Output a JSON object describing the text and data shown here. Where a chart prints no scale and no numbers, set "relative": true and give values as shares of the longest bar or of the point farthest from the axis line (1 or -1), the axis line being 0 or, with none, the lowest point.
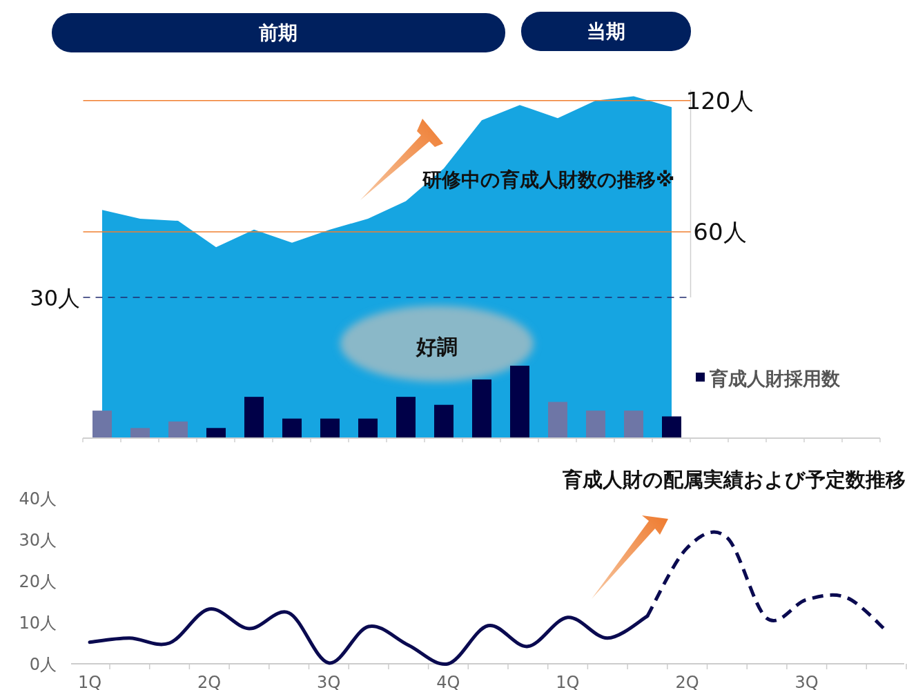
{
  "chart_data": [
    {
      "type": "area",
      "categories": [
        null,
        null,
        null,
        null,
        null,
        null,
        null,
        null,
        null,
        null,
        null,
        null,
        null,
        null,
        null,
        null
      ],
      "ylim": [
        30,
        125
      ],
      "yticks": [
        {
          "value": 60,
          "label": "60人"
        },
        {
          "value": 120,
          "label": "120人"
        }
      ],
      "series": [
        {
          "color": "#16a5e1",
          "values": [
            70,
            66,
            65,
            53,
            61,
            55,
            61,
            66,
            74,
            89,
            111,
            118,
            112,
            120,
            122,
            117
          ]
        }
      ],
      "ref_lines": [
        {
          "axis": "y",
          "value": 120,
          "color": "#f07f2f"
        },
        {
          "axis": "y",
          "value": 60,
          "color": "#f07f2f"
        },
        {
          "axis": "y",
          "value": 30,
          "label": "30人",
          "color": "#1f2a6e",
          "line_style": "dashed"
        }
      ],
      "annotations": [
        "前期",
        "当期",
        "研修中の育成人財数の推移※"
      ]
    },
    {
      "type": "bar",
      "relative": true,
      "categories": [
        null,
        null,
        null,
        null,
        null,
        null,
        null,
        null,
        null,
        null,
        null,
        null,
        null,
        null,
        null,
        null
      ],
      "legend": "right",
      "series": [
        {
          "name": "育成人財採用数",
          "color": "#000048",
          "values": [
            0.38,
            0.14,
            0.23,
            0.14,
            0.57,
            0.27,
            0.27,
            0.27,
            0.57,
            0.46,
            0.81,
            1,
            0.5,
            0.38,
            0.38,
            0.3
          ],
          "colors": [
            "#6e76a6",
            "#6e76a6",
            "#6e76a6",
            "#000048",
            "#000048",
            "#000048",
            "#000048",
            "#000048",
            "#000048",
            "#000048",
            "#000048",
            "#000048",
            "#6e76a6",
            "#6e76a6",
            "#6e76a6",
            "#000048"
          ]
        }
      ],
      "annotations": [
        "好調"
      ]
    },
    {
      "type": "line",
      "title": "育成人財の配属実績および予定数推移",
      "ylim": [
        0,
        40
      ],
      "categories": [
        "1Q",
        null,
        null,
        "2Q",
        null,
        null,
        "3Q",
        null,
        null,
        "4Q",
        null,
        null,
        "1Q",
        null,
        null,
        "2Q",
        null,
        null,
        "3Q",
        null,
        null
      ],
      "yticks": [
        {
          "value": 0,
          "label": "0人"
        },
        {
          "value": 10,
          "label": "10人"
        },
        {
          "value": 20,
          "label": "20人"
        },
        {
          "value": 30,
          "label": "30人"
        },
        {
          "value": 40,
          "label": "40人"
        }
      ],
      "series": [
        {
          "color": "#0a0a50",
          "line_style": "solid",
          "values": [
            5.2,
            6.2,
            5,
            13.2,
            8.5,
            12.3,
            0.2,
            9,
            4.5,
            0,
            9.2,
            4.2,
            11.2,
            6.2,
            11.5,
            null,
            null,
            null,
            null,
            null,
            null
          ]
        },
        {
          "color": "#0a0a50",
          "line_style": "dashed",
          "values": [
            null,
            null,
            null,
            null,
            null,
            null,
            null,
            null,
            null,
            null,
            null,
            null,
            null,
            null,
            11.5,
            28,
            30.5,
            11,
            15.5,
            16,
            8
          ]
        }
      ]
    }
  ]
}
